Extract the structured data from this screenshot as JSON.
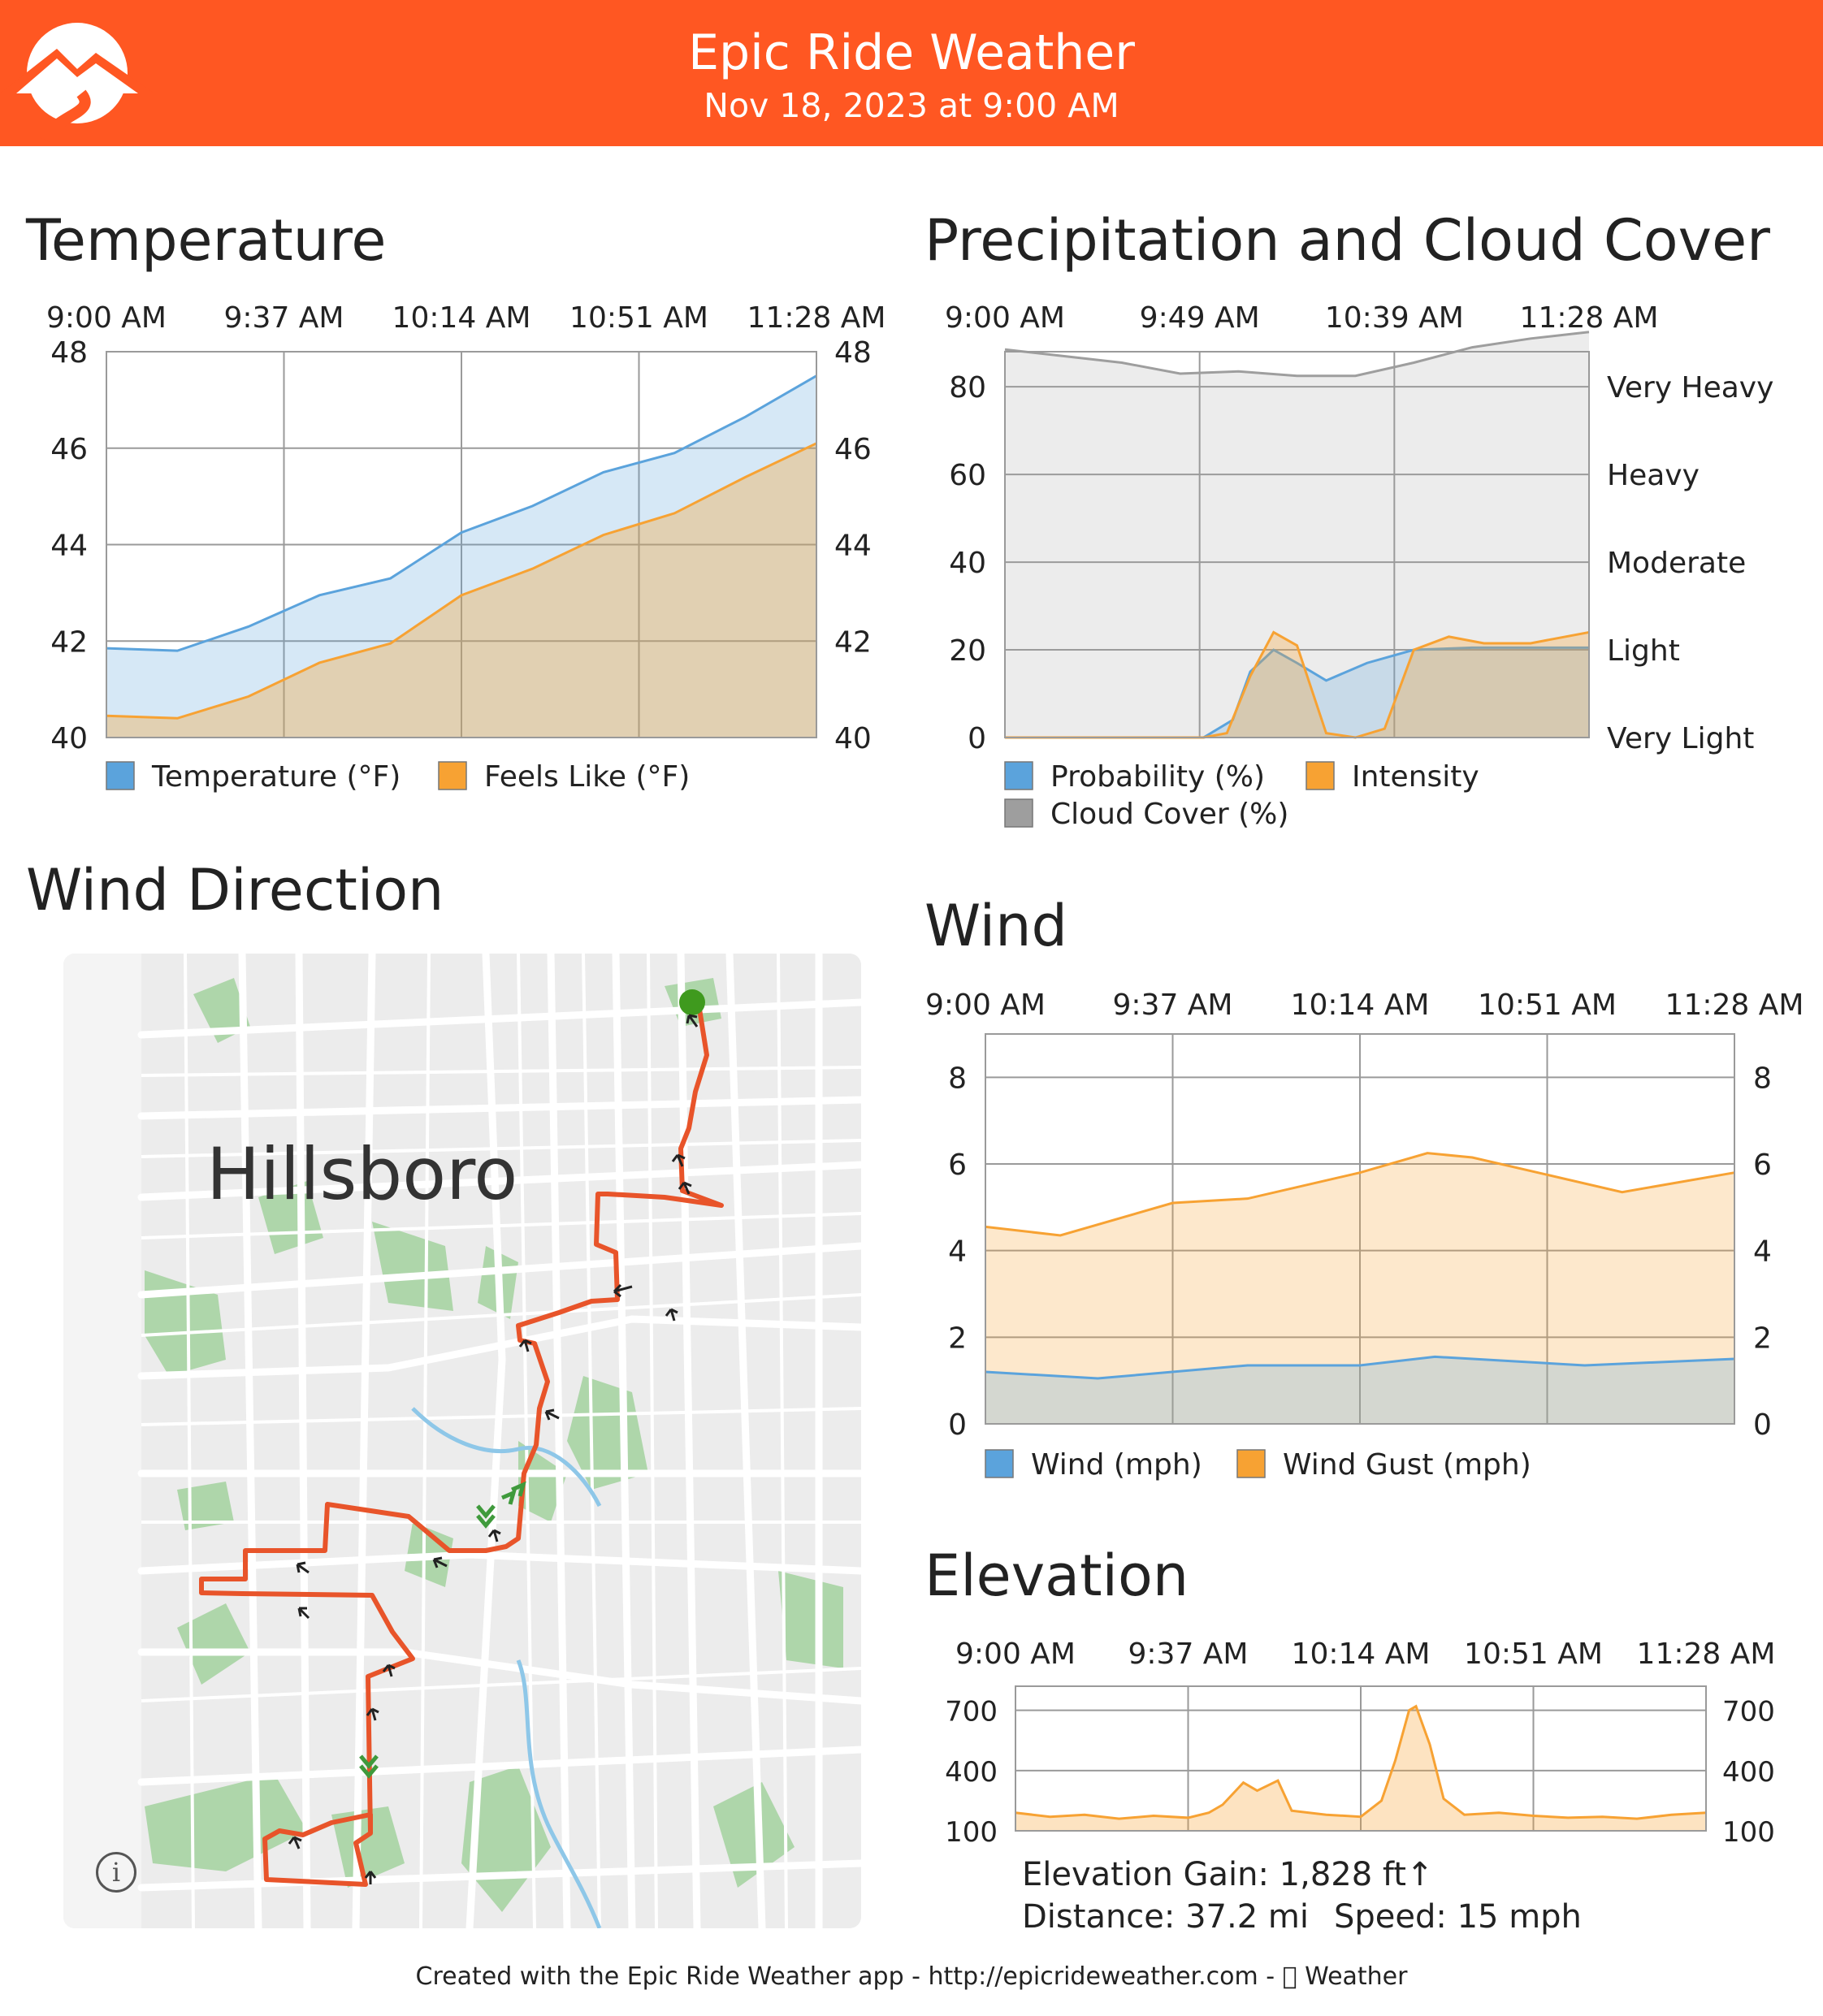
{
  "header": {
    "title": "Epic Ride Weather",
    "subtitle": "Nov 18, 2023 at 9:00 AM",
    "background": "#ff5722"
  },
  "temperature": {
    "title": "Temperature",
    "chart_data": {
      "type": "area",
      "x_ticks": [
        "9:00 AM",
        "9:37 AM",
        "10:14 AM",
        "10:51 AM",
        "11:28 AM"
      ],
      "ylim": [
        40,
        48
      ],
      "y_ticks": [
        "40",
        "42",
        "44",
        "46",
        "48"
      ],
      "series": [
        {
          "name": "Temperature (°F)",
          "color": "#5ba3dc",
          "values": [
            41.85,
            41.8,
            42.3,
            42.95,
            43.3,
            44.25,
            44.8,
            45.5,
            45.9,
            46.65,
            47.5
          ]
        },
        {
          "name": "Feels Like (°F)",
          "color": "#f7a233",
          "values": [
            40.45,
            40.4,
            40.85,
            41.55,
            41.95,
            42.95,
            43.5,
            44.2,
            44.65,
            45.4,
            46.1
          ]
        }
      ],
      "legend": "bottom"
    }
  },
  "precipitation": {
    "title": "Precipitation and Cloud Cover",
    "chart_data": {
      "type": "area",
      "x_ticks": [
        "9:00 AM",
        "9:49 AM",
        "10:39 AM",
        "11:28 AM"
      ],
      "ylim": [
        0,
        88
      ],
      "y_ticks": [
        "0",
        "20",
        "40",
        "60",
        "80"
      ],
      "intensity_ticks": [
        "Very Light",
        "Light",
        "Moderate",
        "Heavy",
        "Very Heavy"
      ],
      "series": [
        {
          "name": "Cloud Cover (%)",
          "color": "#9e9e9e",
          "x": [
            0,
            0.1,
            0.2,
            0.3,
            0.4,
            0.5,
            0.6,
            0.7,
            0.8,
            0.9,
            1.0
          ],
          "values": [
            88.5,
            87,
            85.5,
            83,
            83.5,
            82.5,
            82.5,
            85.5,
            89,
            91,
            92.5
          ]
        },
        {
          "name": "Probability (%)",
          "color": "#5ba3dc",
          "x": [
            0,
            0.3,
            0.34,
            0.39,
            0.42,
            0.46,
            0.5,
            0.55,
            0.62,
            0.7,
            0.8,
            1.0
          ],
          "values": [
            0,
            0,
            0,
            4,
            15,
            20,
            17,
            13,
            17,
            20,
            20.5,
            20.5
          ]
        },
        {
          "name": "Intensity",
          "color": "#f7a233",
          "x": [
            0,
            0.34,
            0.38,
            0.42,
            0.46,
            0.5,
            0.55,
            0.6,
            0.65,
            0.7,
            0.76,
            0.82,
            0.9,
            1.0
          ],
          "values": [
            0,
            0,
            1,
            14,
            24,
            21,
            1,
            0,
            2,
            20,
            23,
            21.5,
            21.5,
            24
          ]
        }
      ],
      "legend": "bottom"
    }
  },
  "wind": {
    "title": "Wind",
    "chart_data": {
      "type": "area",
      "x_ticks": [
        "9:00 AM",
        "9:37 AM",
        "10:14 AM",
        "10:51 AM",
        "11:28 AM"
      ],
      "ylim": [
        0,
        9
      ],
      "y_ticks": [
        "0",
        "2",
        "4",
        "6",
        "8"
      ],
      "series": [
        {
          "name": "Wind Gust (mph)",
          "color": "#f7a233",
          "x": [
            0,
            0.1,
            0.25,
            0.35,
            0.5,
            0.59,
            0.65,
            0.75,
            0.85,
            1.0
          ],
          "values": [
            4.55,
            4.35,
            5.1,
            5.2,
            5.8,
            6.25,
            6.15,
            5.75,
            5.35,
            5.8
          ]
        },
        {
          "name": "Wind (mph)",
          "color": "#5ba3dc",
          "x": [
            0,
            0.15,
            0.35,
            0.5,
            0.6,
            0.8,
            1.0
          ],
          "values": [
            1.2,
            1.05,
            1.35,
            1.35,
            1.55,
            1.35,
            1.5
          ]
        }
      ],
      "legend": "bottom"
    }
  },
  "elevation": {
    "title": "Elevation",
    "chart_data": {
      "type": "area",
      "x_ticks": [
        "9:00 AM",
        "9:37 AM",
        "10:14 AM",
        "10:51 AM",
        "11:28 AM"
      ],
      "ylim": [
        100,
        820
      ],
      "y_ticks": [
        "100",
        "400",
        "700"
      ],
      "series": [
        {
          "name": "Elevation",
          "color": "#f7a233",
          "x": [
            0,
            0.05,
            0.1,
            0.15,
            0.2,
            0.25,
            0.28,
            0.3,
            0.33,
            0.35,
            0.38,
            0.4,
            0.45,
            0.5,
            0.53,
            0.55,
            0.57,
            0.58,
            0.6,
            0.62,
            0.65,
            0.7,
            0.75,
            0.8,
            0.85,
            0.9,
            0.95,
            1.0
          ],
          "values": [
            190,
            170,
            180,
            160,
            175,
            165,
            190,
            230,
            340,
            300,
            350,
            200,
            180,
            170,
            250,
            450,
            700,
            720,
            530,
            260,
            180,
            190,
            175,
            165,
            170,
            160,
            180,
            190
          ]
        }
      ]
    },
    "gain": "Elevation Gain: 1,828 ft↑",
    "distance": "Distance: 37.2 mi",
    "speed": "Speed: 15 mph"
  },
  "wind_direction": {
    "title": "Wind Direction",
    "map_label": "Hillsboro",
    "route_color": "#e8542a"
  },
  "footer": "Created with the Epic Ride Weather app - http://epicrideweather.com -  Weather"
}
